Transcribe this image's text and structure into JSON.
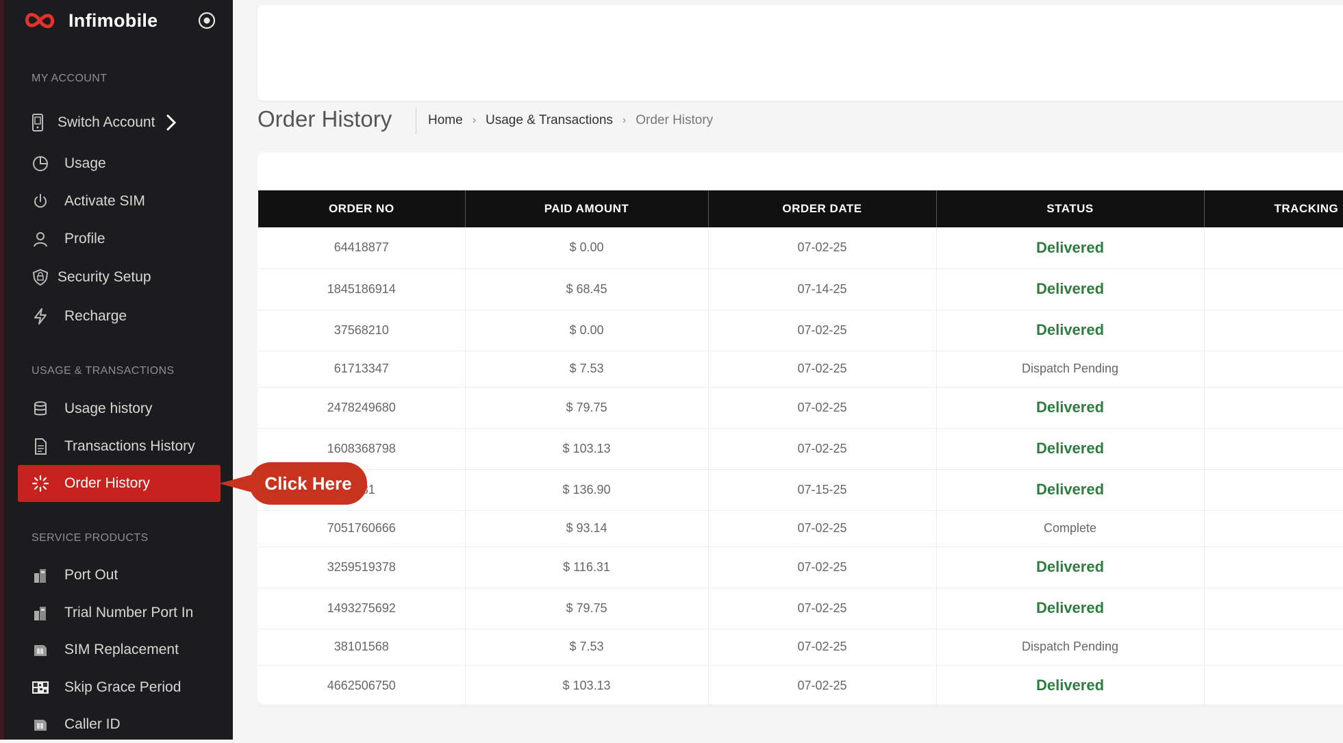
{
  "app": {
    "brand": "Infimobile",
    "accent_color": "#c8221f",
    "sidebar_bg": "#1c1c1e",
    "header_icon": "target-icon"
  },
  "sidebar": {
    "sections": [
      {
        "label": "MY ACCOUNT"
      },
      {
        "label": "USAGE & TRANSACTIONS"
      },
      {
        "label": "SERVICE PRODUCTS"
      }
    ],
    "items": [
      {
        "label": "Switch Account",
        "icon": "phone-icon"
      },
      {
        "label": "Usage",
        "icon": "pie-chart-icon"
      },
      {
        "label": "Activate SIM",
        "icon": "power-icon"
      },
      {
        "label": "Profile",
        "icon": "user-icon"
      },
      {
        "label": "Security Setup",
        "icon": "shield-lock-icon"
      },
      {
        "label": "Recharge",
        "icon": "lightning-icon"
      },
      {
        "label": "Usage history",
        "icon": "database-icon"
      },
      {
        "label": "Transactions History",
        "icon": "document-icon"
      },
      {
        "label": "Order History",
        "icon": "loader-icon",
        "active": true
      },
      {
        "label": "Port Out",
        "icon": "port-icon"
      },
      {
        "label": "Trial Number Port In",
        "icon": "port-icon"
      },
      {
        "label": "SIM Replacement",
        "icon": "sim-icon"
      },
      {
        "label": "Skip Grace Period",
        "icon": "qr-icon"
      },
      {
        "label": "Caller ID",
        "icon": "sim-icon"
      }
    ]
  },
  "callout": {
    "label": "Click Here",
    "color": "#c8331f"
  },
  "page": {
    "title": "Order History",
    "breadcrumb": [
      "Home",
      "Usage & Transactions",
      "Order History"
    ]
  },
  "table": {
    "columns": [
      "ORDER NO",
      "PAID AMOUNT",
      "ORDER DATE",
      "STATUS",
      "TRACKING"
    ],
    "delivered_color": "#2e7d3e",
    "rows": [
      {
        "order_no": "64418877",
        "amount": "$ 0.00",
        "date": "07-02-25",
        "status": "Delivered"
      },
      {
        "order_no": "1845186914",
        "amount": "$ 68.45",
        "date": "07-14-25",
        "status": "Delivered"
      },
      {
        "order_no": "37568210",
        "amount": "$ 0.00",
        "date": "07-02-25",
        "status": "Delivered"
      },
      {
        "order_no": "61713347",
        "amount": "$ 7.53",
        "date": "07-02-25",
        "status": "Dispatch Pending"
      },
      {
        "order_no": "2478249680",
        "amount": "$ 79.75",
        "date": "07-02-25",
        "status": "Delivered"
      },
      {
        "order_no": "1608368798",
        "amount": "$ 103.13",
        "date": "07-02-25",
        "status": "Delivered"
      },
      {
        "order_no": "2381",
        "amount": "$ 136.90",
        "date": "07-15-25",
        "status": "Delivered"
      },
      {
        "order_no": "7051760666",
        "amount": "$ 93.14",
        "date": "07-02-25",
        "status": "Complete"
      },
      {
        "order_no": "3259519378",
        "amount": "$ 116.31",
        "date": "07-02-25",
        "status": "Delivered"
      },
      {
        "order_no": "1493275692",
        "amount": "$ 79.75",
        "date": "07-02-25",
        "status": "Delivered"
      },
      {
        "order_no": "38101568",
        "amount": "$ 7.53",
        "date": "07-02-25",
        "status": "Dispatch Pending"
      },
      {
        "order_no": "4662506750",
        "amount": "$ 103.13",
        "date": "07-02-25",
        "status": "Delivered"
      }
    ]
  }
}
